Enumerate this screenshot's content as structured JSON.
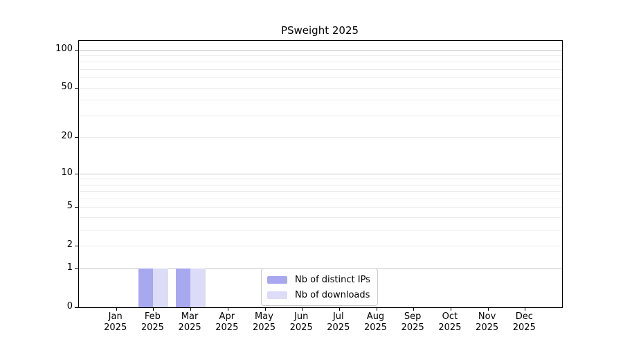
{
  "page": {
    "title": "PSweight 2025"
  },
  "chart_data": {
    "type": "bar",
    "title": "PSweight 2025",
    "categories": [
      "Jan",
      "Feb",
      "Mar",
      "Apr",
      "May",
      "Jun",
      "Jul",
      "Aug",
      "Sep",
      "Oct",
      "Nov",
      "Dec"
    ],
    "category_year": "2025",
    "series": [
      {
        "name": "Nb of distinct IPs",
        "color": "#a8a8f0",
        "values": [
          0,
          1,
          1,
          0,
          0,
          0,
          0,
          0,
          0,
          0,
          0,
          0
        ]
      },
      {
        "name": "Nb of downloads",
        "color": "#dcdcf8",
        "values": [
          0,
          1,
          1,
          0,
          0,
          0,
          0,
          0,
          0,
          0,
          0,
          0
        ]
      }
    ],
    "y_axis": {
      "scale": "log1p",
      "tick_labels": [
        0,
        1,
        2,
        5,
        10,
        20,
        50,
        100
      ],
      "max": 117,
      "major_gridlines": [
        1,
        10,
        100
      ],
      "minor_gridlines": [
        2,
        3,
        4,
        5,
        6,
        7,
        8,
        9,
        20,
        30,
        40,
        50,
        60,
        70,
        80,
        90
      ]
    },
    "legend": {
      "position": "inside-bottom-center"
    },
    "grid": "horizontal",
    "colors": {
      "axis": "#000000",
      "major_grid": "#c3c3c3",
      "minor_grid": "#ebebeb",
      "legend_border": "#cccccc",
      "text": "#000000"
    }
  }
}
